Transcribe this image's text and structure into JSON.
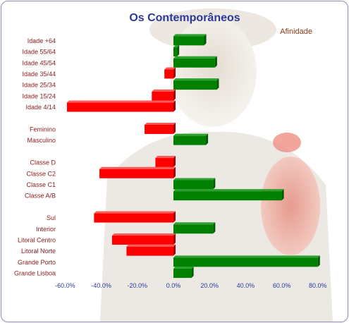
{
  "chart_data": {
    "type": "bar",
    "orientation": "horizontal",
    "title": "Os Contemporâneos",
    "legend_label": "Afinidade",
    "legend_position": "top-right",
    "xlim": [
      -60,
      80
    ],
    "xticks": [
      "-60.0%",
      "-40.0%",
      "-20.0%",
      "0.0%",
      "20.0%",
      "40.0%",
      "60.0%",
      "80.0%"
    ],
    "xtick_values": [
      -60,
      -40,
      -20,
      0,
      20,
      40,
      60,
      80
    ],
    "grid": false,
    "colors": {
      "positive": "#008000",
      "negative": "#ff0000"
    },
    "groups": [
      {
        "categories": [
          "Idade +64",
          "Idade 55/64",
          "Idade 45/54",
          "Idade 35/44",
          "Idade 25/34",
          "Idade 15/24",
          "Idade 4/14"
        ],
        "values": [
          17,
          2,
          23,
          -5,
          24,
          -12,
          -59
        ]
      },
      {
        "categories": [
          "Feminino",
          "Masculino"
        ],
        "values": [
          -16,
          18
        ]
      },
      {
        "categories": [
          "Classe D",
          "Classe C2",
          "Classe C1",
          "Classe A/B"
        ],
        "values": [
          -10,
          -41,
          22,
          60
        ]
      },
      {
        "categories": [
          "Sul",
          "Interior",
          "Litoral Centro",
          "Litoral Norte",
          "Grande Porto",
          "Grande Lisboa"
        ],
        "values": [
          -44,
          22,
          -34,
          -26,
          80,
          10
        ]
      }
    ]
  }
}
